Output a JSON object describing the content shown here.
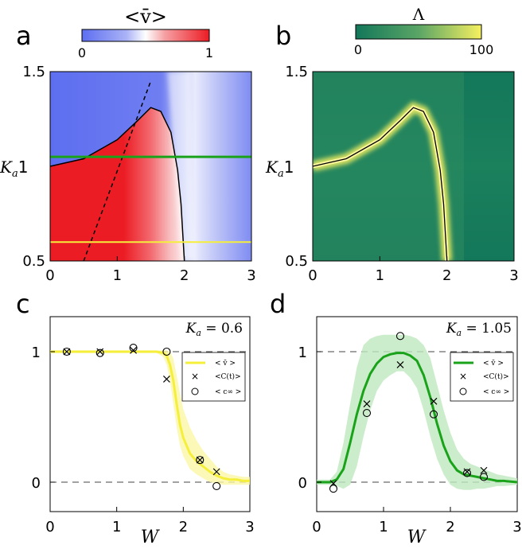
{
  "colors": {
    "red": "#ec1c24",
    "blue": "#5d6ef0",
    "green_dark": "#13775a",
    "green_mid": "#2e8d61",
    "yellow": "#f6f060",
    "curve": "#000000",
    "green_line": "#1aa31a",
    "yellow_line": "#f5ef3c",
    "yellow_band": "#fbf7a6",
    "green_band": "#bfe9bf"
  },
  "panels": {
    "a": {
      "letter": "a",
      "colorbar_title": "<v̄>",
      "colorbar_min": "0",
      "colorbar_max": "1",
      "ylabel": "K",
      "ylabel_sub": "a",
      "ylabel_tick": "1"
    },
    "b": {
      "letter": "b",
      "colorbar_title": "Λ",
      "colorbar_min": "0",
      "colorbar_max": "100",
      "ylabel": "K",
      "ylabel_sub": "a",
      "ylabel_tick": "1"
    },
    "c": {
      "letter": "c",
      "annotation": "K_a = 0.6",
      "xlabel": "W"
    },
    "d": {
      "letter": "d",
      "annotation": "K_a = 1.05",
      "xlabel": "W"
    }
  },
  "chart_data": [
    {
      "panel": "a",
      "type": "heatmap",
      "title": "<v̄>",
      "ylabel": "K_a",
      "xlim": [
        0,
        3
      ],
      "ylim": [
        0.5,
        1.5
      ],
      "xticks": [
        "0",
        "1",
        "2",
        "3"
      ],
      "yticks": [
        "0.5",
        "1.5"
      ],
      "colormap": "blue-white-red",
      "color_range": [
        0,
        1
      ],
      "boundary_curve": [
        [
          0,
          1.0
        ],
        [
          0.5,
          1.04
        ],
        [
          1.0,
          1.14
        ],
        [
          1.3,
          1.24
        ],
        [
          1.5,
          1.31
        ],
        [
          1.65,
          1.29
        ],
        [
          1.8,
          1.18
        ],
        [
          1.9,
          0.98
        ],
        [
          1.95,
          0.8
        ],
        [
          2.0,
          0.5
        ]
      ],
      "dashed_line": [
        [
          0.5,
          0.5
        ],
        [
          1.5,
          1.45
        ]
      ],
      "horizontal_lines": [
        {
          "y": 1.05,
          "color": "green"
        },
        {
          "y": 0.6,
          "color": "yellow"
        }
      ]
    },
    {
      "panel": "b",
      "type": "heatmap",
      "title": "Λ",
      "ylabel": "K_a",
      "xlim": [
        0,
        3
      ],
      "ylim": [
        0.5,
        1.5
      ],
      "xticks": [
        "0",
        "1",
        "2",
        "3"
      ],
      "yticks": [
        "0.5",
        "1.5"
      ],
      "colormap": "green-yellow",
      "color_range": [
        0,
        100
      ],
      "ridge_curve": [
        [
          0,
          1.0
        ],
        [
          0.5,
          1.04
        ],
        [
          1.0,
          1.14
        ],
        [
          1.3,
          1.24
        ],
        [
          1.5,
          1.31
        ],
        [
          1.65,
          1.29
        ],
        [
          1.8,
          1.18
        ],
        [
          1.9,
          0.98
        ],
        [
          1.95,
          0.8
        ],
        [
          2.0,
          0.5
        ]
      ]
    },
    {
      "panel": "c",
      "type": "line",
      "xlabel": "W",
      "xlim": [
        0,
        3
      ],
      "ylim": [
        -0.2,
        1.25
      ],
      "xticks": [
        "0",
        "1",
        "2",
        "3"
      ],
      "yticks": [
        "0",
        "1"
      ],
      "legend": {
        "placement": "top-right",
        "entries": [
          "< v̄ >",
          "<C(t)>",
          "< c∞ >"
        ]
      },
      "series": [
        {
          "name": "< v̄ >",
          "x": [
            0.0,
            0.25,
            0.5,
            0.75,
            1.0,
            1.25,
            1.5,
            1.6,
            1.7,
            1.75,
            1.8,
            1.85,
            1.9,
            1.95,
            2.0,
            2.1,
            2.2,
            2.3,
            2.4,
            2.5,
            2.6,
            2.7,
            2.8,
            2.9,
            3.0
          ],
          "y": [
            1.0,
            1.0,
            1.0,
            1.0,
            1.0,
            1.0,
            1.0,
            1.0,
            0.99,
            0.97,
            0.9,
            0.78,
            0.6,
            0.44,
            0.34,
            0.22,
            0.16,
            0.12,
            0.08,
            0.05,
            0.03,
            0.02,
            0.02,
            0.01,
            0.01
          ],
          "band_low": [
            0.99,
            0.99,
            0.99,
            0.99,
            0.99,
            0.99,
            0.99,
            0.99,
            0.96,
            0.9,
            0.78,
            0.6,
            0.42,
            0.28,
            0.2,
            0.1,
            0.06,
            0.03,
            0.0,
            -0.01,
            -0.02,
            -0.02,
            -0.02,
            -0.02,
            -0.02
          ],
          "band_high": [
            1.01,
            1.01,
            1.01,
            1.01,
            1.01,
            1.01,
            1.01,
            1.01,
            1.01,
            1.01,
            1.0,
            0.95,
            0.82,
            0.68,
            0.56,
            0.42,
            0.32,
            0.24,
            0.18,
            0.12,
            0.08,
            0.06,
            0.05,
            0.04,
            0.04
          ]
        },
        {
          "name": "<C(t)>",
          "marker": "x",
          "x": [
            0.25,
            0.75,
            1.25,
            1.75,
            2.25,
            2.5
          ],
          "y": [
            1.0,
            1.0,
            1.01,
            0.79,
            0.17,
            0.08
          ]
        },
        {
          "name": "< c∞ >",
          "marker": "o",
          "x": [
            0.25,
            0.75,
            1.25,
            1.75,
            2.25,
            2.5
          ],
          "y": [
            1.0,
            0.99,
            1.03,
            1.0,
            0.17,
            -0.03
          ]
        }
      ],
      "annotation": "K_a = 0.6"
    },
    {
      "panel": "d",
      "type": "line",
      "xlabel": "W",
      "xlim": [
        0,
        3
      ],
      "ylim": [
        -0.2,
        1.25
      ],
      "xticks": [
        "0",
        "1",
        "2",
        "3"
      ],
      "yticks": [
        "0",
        "1"
      ],
      "legend": {
        "placement": "top-right",
        "entries": [
          "< v̄ >",
          "<C(t)>",
          "< c∞ >"
        ]
      },
      "series": [
        {
          "name": "< v̄ >",
          "x": [
            0.0,
            0.2,
            0.3,
            0.4,
            0.5,
            0.6,
            0.7,
            0.8,
            0.9,
            1.0,
            1.1,
            1.2,
            1.3,
            1.4,
            1.5,
            1.6,
            1.7,
            1.8,
            1.9,
            2.0,
            2.1,
            2.2,
            2.3,
            2.4,
            2.5,
            2.6,
            2.7,
            2.8,
            3.0
          ],
          "y": [
            0.0,
            0.0,
            0.02,
            0.1,
            0.3,
            0.52,
            0.7,
            0.83,
            0.91,
            0.96,
            0.98,
            0.99,
            0.99,
            0.97,
            0.93,
            0.82,
            0.65,
            0.45,
            0.28,
            0.16,
            0.09,
            0.06,
            0.05,
            0.04,
            0.03,
            0.02,
            0.01,
            0.01,
            0.0
          ],
          "band_low": [
            -0.02,
            -0.02,
            -0.03,
            -0.05,
            -0.02,
            0.12,
            0.35,
            0.55,
            0.7,
            0.78,
            0.82,
            0.85,
            0.85,
            0.8,
            0.72,
            0.55,
            0.35,
            0.18,
            0.06,
            -0.02,
            -0.05,
            -0.06,
            -0.06,
            -0.05,
            -0.05,
            -0.04,
            -0.03,
            -0.03,
            -0.02
          ],
          "band_high": [
            0.02,
            0.02,
            0.08,
            0.3,
            0.6,
            0.88,
            1.05,
            1.1,
            1.12,
            1.13,
            1.13,
            1.13,
            1.13,
            1.12,
            1.1,
            1.05,
            0.95,
            0.75,
            0.55,
            0.38,
            0.25,
            0.18,
            0.14,
            0.12,
            0.1,
            0.08,
            0.06,
            0.05,
            0.03
          ]
        },
        {
          "name": "<C(t)>",
          "marker": "x",
          "x": [
            0.25,
            0.75,
            1.25,
            1.75,
            2.25,
            2.5
          ],
          "y": [
            -0.01,
            0.6,
            0.9,
            0.62,
            0.08,
            0.09
          ]
        },
        {
          "name": "< c∞ >",
          "marker": "o",
          "x": [
            0.25,
            0.75,
            1.25,
            1.75,
            2.25,
            2.5
          ],
          "y": [
            -0.05,
            0.53,
            1.12,
            0.52,
            0.07,
            0.04
          ]
        }
      ],
      "annotation": "K_a = 1.05"
    }
  ]
}
